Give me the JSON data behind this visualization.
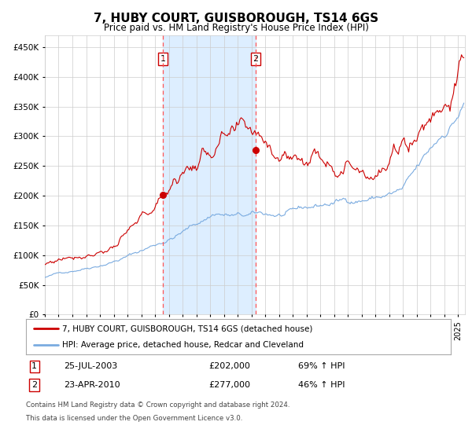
{
  "title": "7, HUBY COURT, GUISBOROUGH, TS14 6GS",
  "subtitle": "Price paid vs. HM Land Registry's House Price Index (HPI)",
  "ylim": [
    0,
    470000
  ],
  "yticks": [
    0,
    50000,
    100000,
    150000,
    200000,
    250000,
    300000,
    350000,
    400000,
    450000
  ],
  "sale1_date_num_year": 2003,
  "sale1_date_num_month": 7,
  "sale1_date_num_day": 25,
  "sale1_price": 202000,
  "sale2_date_num_year": 2010,
  "sale2_date_num_month": 4,
  "sale2_date_num_day": 23,
  "sale2_price": 277000,
  "legend_property": "7, HUBY COURT, GUISBOROUGH, TS14 6GS (detached house)",
  "legend_hpi": "HPI: Average price, detached house, Redcar and Cleveland",
  "footnote_line1": "Contains HM Land Registry data © Crown copyright and database right 2024.",
  "footnote_line2": "This data is licensed under the Open Government Licence v3.0.",
  "table_row1": "25-JUL-2003",
  "table_row1_price": "£202,000",
  "table_row1_pct": "69% ↑ HPI",
  "table_row2": "23-APR-2010",
  "table_row2_price": "£277,000",
  "table_row2_pct": "46% ↑ HPI",
  "line_property_color": "#cc0000",
  "line_hpi_color": "#7aabe0",
  "marker_color": "#cc0000",
  "shading_color": "#ddeeff",
  "dashed_color": "#ff5555",
  "box_color": "#cc0000",
  "grid_color": "#cccccc",
  "bg_color": "#ffffff"
}
